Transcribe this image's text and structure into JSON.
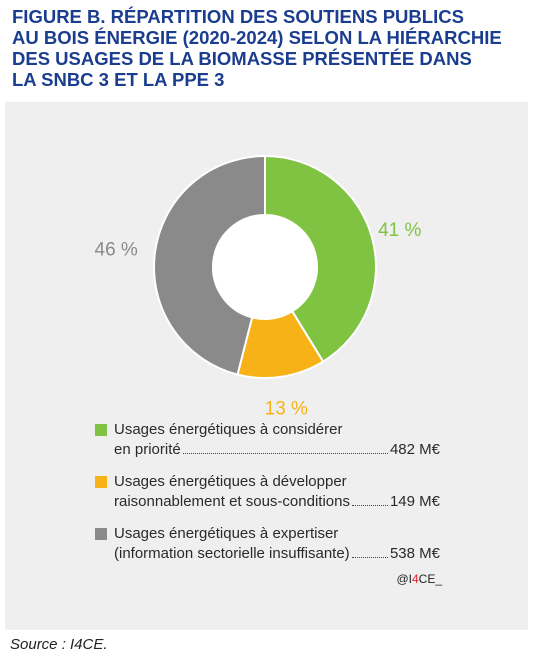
{
  "figure": {
    "title_lines": [
      "FIGURE B. RÉPARTITION DES SOUTIENS PUBLICS",
      "AU BOIS ÉNERGIE (2020-2024) SELON LA HIÉRARCHIE",
      "DES USAGES DE LA BIOMASSE PRÉSENTÉE DANS",
      "LA SNBC 3 ET LA PPE 3"
    ],
    "credit_prefix": "@I",
    "credit_accent": "4",
    "credit_suffix": "CE_",
    "source": "Source : I4CE."
  },
  "chart_data": {
    "type": "pie",
    "donut": true,
    "categories": [
      "Usages énergétiques à considérer en priorité",
      "Usages énergétiques à développer raisonnablement et sous-conditions",
      "Usages énergétiques à expertiser (information sectorielle insuffisante)"
    ],
    "values": [
      482,
      149,
      538
    ],
    "unit": "M€",
    "percent_labels": [
      "41 %",
      "13 %",
      "46 %"
    ],
    "colors": [
      "#80c342",
      "#f7b217",
      "#8a8a8a"
    ],
    "legend": [
      {
        "line1": "Usages énergétiques à considérer",
        "line2": "en priorité",
        "value": "482 M€",
        "color": "#80c342"
      },
      {
        "line1": "Usages énergétiques à développer",
        "line2": "raisonnablement et sous-conditions",
        "value": "149 M€",
        "color": "#f7b217"
      },
      {
        "line1": "Usages énergétiques à expertiser",
        "line2": "(information sectorielle insuffisante)",
        "value": "538 M€",
        "color": "#8a8a8a"
      }
    ],
    "legend_position": "bottom"
  }
}
